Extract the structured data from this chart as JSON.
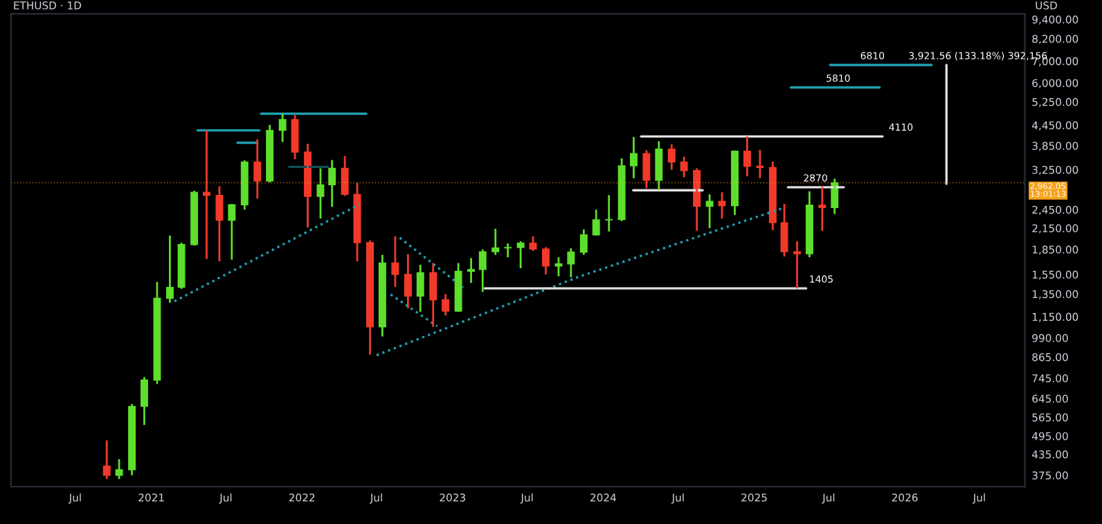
{
  "chart_data": {
    "type": "candlestick",
    "title": "ETHUSD · 1D",
    "ylabel": "USD",
    "log": true,
    "x": [
      "2020-09-15",
      "2020-10-15",
      "2020-11-15",
      "2020-12-15",
      "2021-01-15",
      "2021-02-15",
      "2021-03-15",
      "2021-04-15",
      "2021-05-15",
      "2021-06-15",
      "2021-07-15",
      "2021-08-15",
      "2021-09-15",
      "2021-10-15",
      "2021-11-15",
      "2021-12-15",
      "2022-01-15",
      "2022-02-15",
      "2022-03-15",
      "2022-04-15",
      "2022-05-15",
      "2022-06-15",
      "2022-07-15",
      "2022-08-15",
      "2022-09-15",
      "2022-10-15",
      "2022-11-15",
      "2022-12-15",
      "2023-01-15",
      "2023-02-15",
      "2023-03-15",
      "2023-04-15",
      "2023-05-15",
      "2023-06-15",
      "2023-07-15",
      "2023-08-15",
      "2023-09-15",
      "2023-10-15",
      "2023-11-15",
      "2023-12-15",
      "2024-01-15",
      "2024-02-15",
      "2024-03-15",
      "2024-04-15",
      "2024-05-15",
      "2024-06-15",
      "2024-07-15",
      "2024-08-15",
      "2024-09-15",
      "2024-10-15",
      "2024-11-15",
      "2024-12-15",
      "2025-01-15",
      "2025-02-15",
      "2025-03-15",
      "2025-04-15",
      "2025-05-15",
      "2025-06-15",
      "2025-07-15"
    ],
    "ohlc": [
      [
        400,
        480,
        365,
        375
      ],
      [
        375,
        420,
        365,
        390
      ],
      [
        390,
        620,
        375,
        610
      ],
      [
        610,
        750,
        535,
        735
      ],
      [
        735,
        1470,
        715,
        1310
      ],
      [
        1310,
        2040,
        1270,
        1415
      ],
      [
        1415,
        1940,
        1400,
        1915
      ],
      [
        1915,
        2800,
        1900,
        2770
      ],
      [
        2770,
        4290,
        1730,
        2710
      ],
      [
        2710,
        2890,
        1700,
        2275
      ],
      [
        2275,
        2550,
        1720,
        2535
      ],
      [
        2535,
        3470,
        2450,
        3430
      ],
      [
        3430,
        4030,
        2650,
        3000
      ],
      [
        3000,
        4460,
        2970,
        4290
      ],
      [
        4290,
        4825,
        3950,
        4630
      ],
      [
        4630,
        4780,
        3500,
        3680
      ],
      [
        3680,
        3900,
        2160,
        2690
      ],
      [
        2690,
        3280,
        2300,
        2920
      ],
      [
        2920,
        3480,
        2500,
        3280
      ],
      [
        3280,
        3580,
        2700,
        2730
      ],
      [
        2730,
        2960,
        1700,
        1940
      ],
      [
        1940,
        1970,
        880,
        1070
      ],
      [
        1070,
        1780,
        1000,
        1680
      ],
      [
        1680,
        2030,
        1420,
        1550
      ],
      [
        1550,
        1790,
        1220,
        1330
      ],
      [
        1330,
        1660,
        1190,
        1570
      ],
      [
        1570,
        1680,
        1070,
        1295
      ],
      [
        1295,
        1350,
        1160,
        1196
      ],
      [
        1196,
        1680,
        1190,
        1585
      ],
      [
        1585,
        1740,
        1460,
        1605
      ],
      [
        1605,
        1850,
        1370,
        1820
      ],
      [
        1820,
        2140,
        1780,
        1870
      ],
      [
        1870,
        1930,
        1750,
        1875
      ],
      [
        1875,
        1960,
        1620,
        1935
      ],
      [
        1935,
        2030,
        1830,
        1855
      ],
      [
        1855,
        1880,
        1550,
        1645
      ],
      [
        1645,
        1750,
        1530,
        1670
      ],
      [
        1670,
        1865,
        1520,
        1815
      ],
      [
        1815,
        2130,
        1780,
        2050
      ],
      [
        2050,
        2450,
        2040,
        2280
      ],
      [
        2280,
        2715,
        2100,
        2285
      ],
      [
        2285,
        3520,
        2260,
        3340
      ],
      [
        3340,
        4090,
        3060,
        3640
      ],
      [
        3640,
        3730,
        2850,
        3015
      ],
      [
        3015,
        3975,
        2815,
        3760
      ],
      [
        3760,
        3890,
        3250,
        3430
      ],
      [
        3430,
        3560,
        3080,
        3230
      ],
      [
        3230,
        3280,
        2110,
        2510
      ],
      [
        2510,
        2730,
        2150,
        2600
      ],
      [
        2600,
        2770,
        2300,
        2520
      ],
      [
        2520,
        3720,
        2360,
        3705
      ],
      [
        3705,
        4110,
        3100,
        3330
      ],
      [
        3330,
        3740,
        3060,
        3300
      ],
      [
        3300,
        3440,
        2120,
        2235
      ],
      [
        2235,
        2550,
        1760,
        1820
      ],
      [
        1820,
        1960,
        1405,
        1795
      ],
      [
        1795,
        2790,
        1750,
        2530
      ],
      [
        2530,
        2880,
        2110,
        2485
      ],
      [
        2485,
        3050,
        2375,
        2962.05
      ]
    ],
    "colors": [
      "#f23a2b",
      "#5ddf2c",
      "#5ddf2c",
      "#5ddf2c",
      "#5ddf2c",
      "#5ddf2c",
      "#5ddf2c",
      "#5ddf2c",
      "#f23a2b",
      "#f23a2b",
      "#5ddf2c",
      "#5ddf2c",
      "#f23a2b",
      "#5ddf2c",
      "#5ddf2c",
      "#f23a2b",
      "#f23a2b",
      "#5ddf2c",
      "#5ddf2c",
      "#f23a2b",
      "#f23a2b",
      "#f23a2b",
      "#5ddf2c",
      "#f23a2b",
      "#f23a2b",
      "#5ddf2c",
      "#f23a2b",
      "#f23a2b",
      "#5ddf2c",
      "#5ddf2c",
      "#5ddf2c",
      "#5ddf2c",
      "#5ddf2c",
      "#5ddf2c",
      "#f23a2b",
      "#f23a2b",
      "#5ddf2c",
      "#5ddf2c",
      "#5ddf2c",
      "#5ddf2c",
      "#5ddf2c",
      "#5ddf2c",
      "#5ddf2c",
      "#f23a2b",
      "#5ddf2c",
      "#f23a2b",
      "#f23a2b",
      "#f23a2b",
      "#5ddf2c",
      "#f23a2b",
      "#5ddf2c",
      "#f23a2b",
      "#f23a2b",
      "#f23a2b",
      "#f23a2b",
      "#f23a2b",
      "#5ddf2c",
      "#f23a2b",
      "#5ddf2c"
    ],
    "series": [
      {
        "type": "line",
        "x": [
          "2021-02-26",
          "2022-05-20"
        ],
        "values": [
          1282,
          2540
        ],
        "color": "#1f9fb0",
        "line_style": "dotted"
      },
      {
        "type": "line",
        "x": [
          "2022-07-01",
          "2023-11-05",
          "2025-03-17"
        ],
        "values": [
          876,
          1528,
          2490
        ],
        "color": "#1f9fb0",
        "line_style": "dotted"
      },
      {
        "type": "line",
        "x": [
          "2022-08-26",
          "2023-01-27"
        ],
        "values": [
          2009,
          1414
        ],
        "color": "#1f9fb0",
        "line_style": "dotted"
      },
      {
        "type": "line",
        "x": [
          "2022-08-04",
          "2022-11-25"
        ],
        "values": [
          1346,
          1075
        ],
        "color": "#1f9fb0",
        "line_style": "dotted"
      },
      {
        "type": "line",
        "x": [
          "2021-04-23",
          "2021-09-20"
        ],
        "values": [
          4290,
          4290
        ],
        "color": "#1f9fb0",
        "line_style": "solid"
      },
      {
        "type": "line",
        "x": [
          "2021-07-29",
          "2021-09-15"
        ],
        "values": [
          3930,
          3930
        ],
        "color": "#1f9fb0",
        "line_style": "solid"
      },
      {
        "type": "line",
        "x": [
          "2021-09-24",
          "2022-06-06"
        ],
        "values": [
          4825,
          4825
        ],
        "color": "#1f9fb0",
        "line_style": "solid"
      },
      {
        "type": "line",
        "x": [
          "2021-12-01",
          "2022-03-05"
        ],
        "values": [
          3316,
          3316
        ],
        "color": "#0f4f59",
        "line_style": "solid"
      },
      {
        "type": "line",
        "x": [
          "2024-04-02",
          "2025-11-08"
        ],
        "values": [
          4110,
          4110
        ],
        "color": "#e0e0e0",
        "line_style": "solid"
      },
      {
        "type": "line",
        "x": [
          "2024-03-14",
          "2024-08-29"
        ],
        "values": [
          2809,
          2809
        ],
        "color": "#e0e0e0",
        "line_style": "solid"
      },
      {
        "type": "line",
        "x": [
          "2025-03-24",
          "2025-08-06"
        ],
        "values": [
          2870,
          2870
        ],
        "color": "#e0e0e0",
        "line_style": "solid"
      },
      {
        "type": "line",
        "x": [
          "2023-03-20",
          "2025-05-07"
        ],
        "values": [
          1405,
          1405
        ],
        "color": "#e0e0e0",
        "line_style": "solid"
      },
      {
        "type": "line",
        "x": [
          "2025-03-31",
          "2025-11-01"
        ],
        "values": [
          5810,
          5810
        ],
        "color": "#1f9fb0",
        "line_style": "solid"
      },
      {
        "type": "line",
        "x": [
          "2025-07-04",
          "2026-03-07"
        ],
        "values": [
          6810,
          6810
        ],
        "color": "#1f9fb0",
        "line_style": "solid"
      },
      {
        "type": "line",
        "x": [
          "2026-04-12",
          "2026-04-12"
        ],
        "values": [
          2940,
          6810
        ],
        "color": "#e0e0e0",
        "line_style": "solid"
      }
    ],
    "annotations": [
      {
        "text": "6810",
        "x": "2025-09-15",
        "y": 6810
      },
      {
        "text": "5810",
        "x": "2025-06-24",
        "y": 5810
      },
      {
        "text": "4110",
        "x": "2025-11-23",
        "y": 4110
      },
      {
        "text": "2870",
        "x": "2025-04-30",
        "y": 2870
      },
      {
        "text": "1405",
        "x": "2025-05-14",
        "y": 1405
      },
      {
        "text": "3,921.56 (133.18%) 392,156",
        "x": "2026-01-10",
        "y": 6810
      }
    ],
    "ref_lines": [
      {
        "axis": "y",
        "value": 2962.05,
        "label": "2,962.05\n13:01:13",
        "color": "#f7a21b",
        "line_style": "dotted"
      }
    ],
    "xlim": [
      "2020-01-27",
      "2026-10-19"
    ],
    "xticks": [
      {
        "value": "2020-07-01",
        "label": "Jul"
      },
      {
        "value": "2021-01-01",
        "label": "2021"
      },
      {
        "value": "2021-07-01",
        "label": "Jul"
      },
      {
        "value": "2022-01-01",
        "label": "2022"
      },
      {
        "value": "2022-07-01",
        "label": "Jul"
      },
      {
        "value": "2023-01-01",
        "label": "2023"
      },
      {
        "value": "2023-07-01",
        "label": "Jul"
      },
      {
        "value": "2024-01-01",
        "label": "2024"
      },
      {
        "value": "2024-07-01",
        "label": "Jul"
      },
      {
        "value": "2025-01-01",
        "label": "2025"
      },
      {
        "value": "2025-07-01",
        "label": "Jul"
      },
      {
        "value": "2026-01-01",
        "label": "2026"
      },
      {
        "value": "2026-07-01",
        "label": "Jul"
      }
    ],
    "ylim": [
      346,
      9775
    ],
    "yticks": [
      {
        "value": 375,
        "label": "375.00"
      },
      {
        "value": 435,
        "label": "435.00"
      },
      {
        "value": 495,
        "label": "495.00"
      },
      {
        "value": 565,
        "label": "565.00"
      },
      {
        "value": 645,
        "label": "645.00"
      },
      {
        "value": 745,
        "label": "745.00"
      },
      {
        "value": 865,
        "label": "865.00"
      },
      {
        "value": 990,
        "label": "990.00"
      },
      {
        "value": 1150,
        "label": "1,150.00"
      },
      {
        "value": 1350,
        "label": "1,350.00"
      },
      {
        "value": 1550,
        "label": "1,550.00"
      },
      {
        "value": 1850,
        "label": "1,850.00"
      },
      {
        "value": 2150,
        "label": "2,150.00"
      },
      {
        "value": 2450,
        "label": "2,450.00"
      },
      {
        "value": 3250,
        "label": "3,250.00"
      },
      {
        "value": 3850,
        "label": "3,850.00"
      },
      {
        "value": 4450,
        "label": "4,450.00"
      },
      {
        "value": 5250,
        "label": "5,250.00"
      },
      {
        "value": 6000,
        "label": "6,000.00"
      },
      {
        "value": 7000,
        "label": "7,000.00"
      },
      {
        "value": 8200,
        "label": "8,200.00"
      },
      {
        "value": 9400,
        "label": "9,400.00"
      }
    ]
  }
}
